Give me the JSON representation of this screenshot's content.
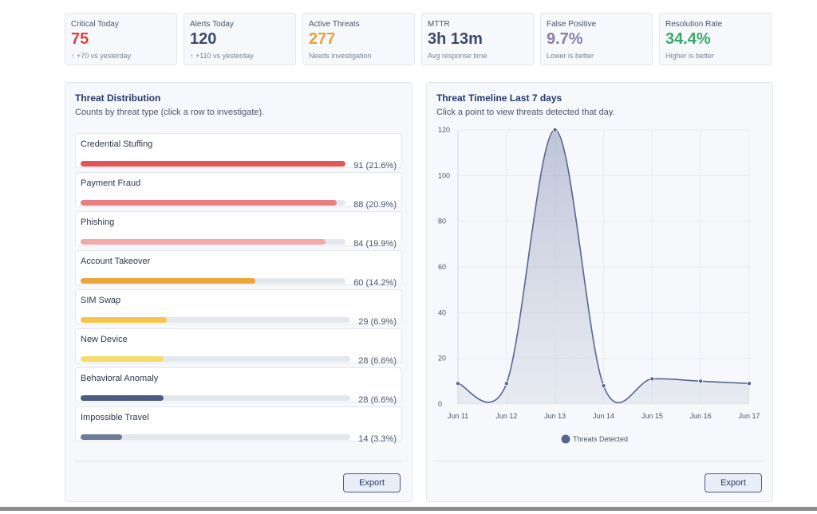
{
  "kpis": [
    {
      "label": "Critical Today",
      "value": "75",
      "note": "↑ +70 vs yesterday",
      "color": "#d94444"
    },
    {
      "label": "Alerts Today",
      "value": "120",
      "note": "↑ +110 vs yesterday",
      "color": "#3b4a6b"
    },
    {
      "label": "Active Threats",
      "value": "277",
      "note": "Needs investigation",
      "color": "#e8a23a"
    },
    {
      "label": "MTTR",
      "value": "3h 13m",
      "note": "Avg response time",
      "color": "#3b4a6b"
    },
    {
      "label": "False Positive",
      "value": "9.7%",
      "note": "Lower is better",
      "color": "#8a7daa"
    },
    {
      "label": "Resolution Rate",
      "value": "34.4%",
      "note": "Higher is better",
      "color": "#3aa86a"
    }
  ],
  "distribution": {
    "title": "Threat Distribution",
    "subtitle": "Counts by threat type (click a row to investigate).",
    "button": "Export",
    "rows": [
      {
        "name": "Credential Stuffing",
        "count": 91,
        "value_label": "91 (21.6%)",
        "color": "#e05555"
      },
      {
        "name": "Payment Fraud",
        "count": 88,
        "value_label": "88 (20.9%)",
        "color": "#ea7f80"
      },
      {
        "name": "Phishing",
        "count": 84,
        "value_label": "84 (19.9%)",
        "color": "#f0a9a9"
      },
      {
        "name": "Account Takeover",
        "count": 60,
        "value_label": "60 (14.2%)",
        "color": "#eca53a"
      },
      {
        "name": "SIM Swap",
        "count": 29,
        "value_label": "29 (6.9%)",
        "color": "#f2c64a"
      },
      {
        "name": "New Device",
        "count": 28,
        "value_label": "28 (6.6%)",
        "color": "#f3de6a"
      },
      {
        "name": "Behavioral Anomaly",
        "count": 28,
        "value_label": "28 (6.6%)",
        "color": "#4d5b82"
      },
      {
        "name": "Impossible Travel",
        "count": 14,
        "value_label": "14 (3.3%)",
        "color": "#6e7b98"
      }
    ]
  },
  "timeline": {
    "title": "Threat Timeline Last 7 days",
    "subtitle": "Click a point to view threats detected that day.",
    "button": "Export",
    "chart_data": {
      "type": "line",
      "categories": [
        "Jun 11",
        "Jun 12",
        "Jun 13",
        "Jun 14",
        "Jun 15",
        "Jun 16",
        "Jun 17"
      ],
      "series": [
        {
          "name": "Threats Detected",
          "color": "#566690",
          "values": [
            9,
            9,
            120,
            8,
            11,
            10,
            9
          ]
        }
      ],
      "ylim": [
        0,
        120
      ],
      "yticks": [
        0,
        20,
        40,
        60,
        80,
        100,
        120
      ],
      "grid": true
    }
  }
}
